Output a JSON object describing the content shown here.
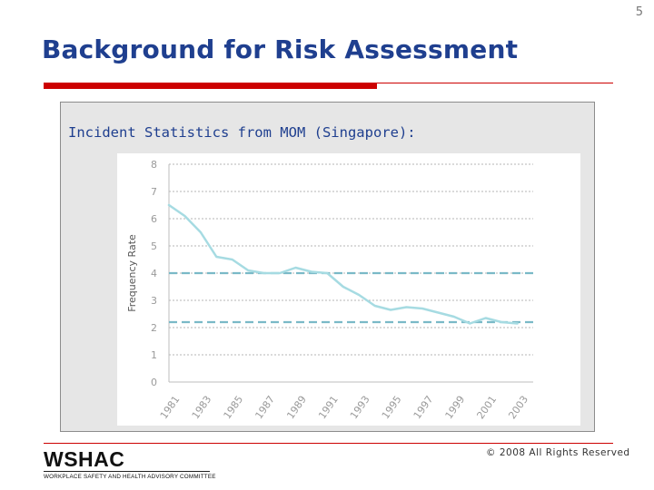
{
  "page_number": "5",
  "title": "Background for Risk Assessment",
  "section_heading": "Incident Statistics from MOM (Singapore):",
  "footer": {
    "copyright": "© 2008 All Rights Reserved",
    "logo_text": "WSHAC",
    "logo_subtitle": "Workplace Safety and Health Advisory Committee"
  },
  "colors": {
    "title": "#1f3f8f",
    "accent_rule": "#cc0000",
    "series_line": "#a6dbe2",
    "reference_line": "#7ab9c7",
    "axis_text": "#9a9a9a"
  },
  "chart_data": {
    "type": "line",
    "title": "",
    "xlabel": "",
    "ylabel": "Frequency Rate",
    "xlim": [
      1981,
      2004
    ],
    "ylim": [
      0,
      8
    ],
    "y_ticks": [
      0,
      1,
      2,
      3,
      4,
      5,
      6,
      7,
      8
    ],
    "x_ticks": [
      1981,
      1983,
      1985,
      1987,
      1989,
      1991,
      1993,
      1995,
      1997,
      1999,
      2001,
      2003
    ],
    "grid": "horizontal-dotted",
    "series": [
      {
        "x": [
          1981,
          1982,
          1983,
          1984,
          1985,
          1986,
          1987,
          1988,
          1989,
          1990,
          1991,
          1992,
          1993,
          1994,
          1995,
          1996,
          1997,
          1998,
          1999,
          2000,
          2001,
          2002,
          2003
        ],
        "values": [
          6.5,
          6.1,
          5.5,
          4.6,
          4.5,
          4.1,
          4.0,
          4.0,
          4.2,
          4.05,
          4.0,
          3.5,
          3.2,
          2.8,
          2.65,
          2.75,
          2.7,
          2.55,
          2.4,
          2.15,
          2.35,
          2.2,
          2.15
        ]
      }
    ],
    "reference_lines": [
      {
        "y": 4.0,
        "style": "dashed"
      },
      {
        "y": 2.2,
        "style": "dashed"
      }
    ]
  }
}
